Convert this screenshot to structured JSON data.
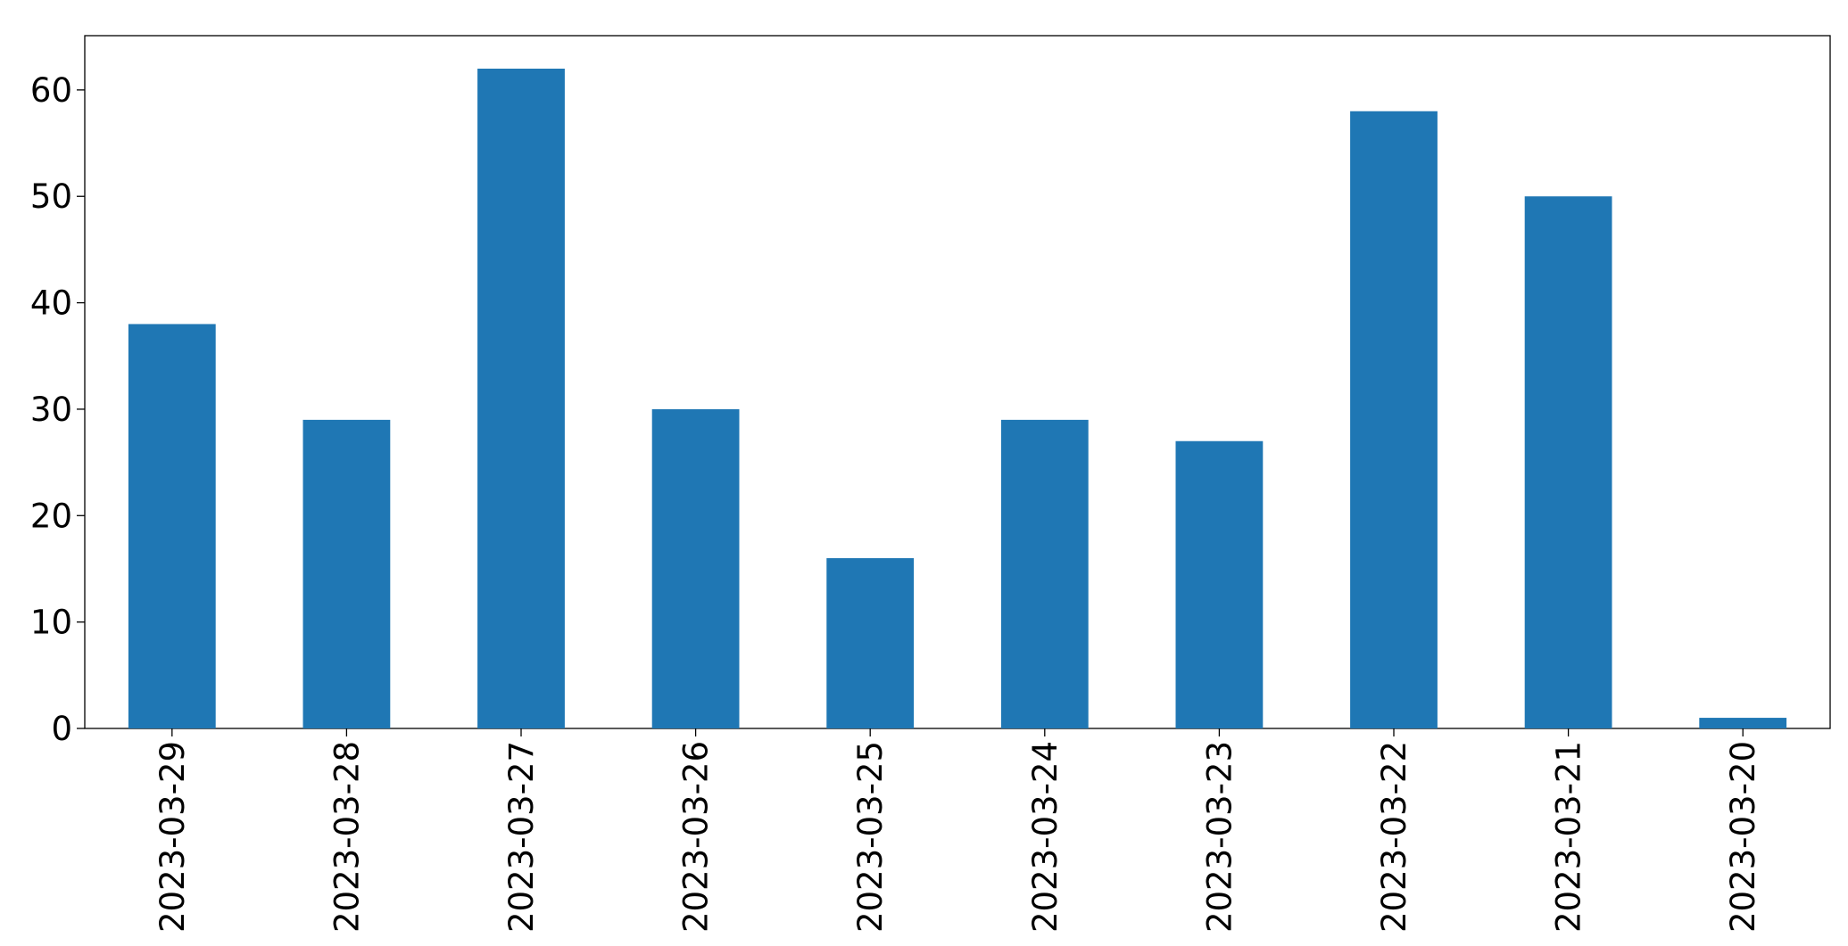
{
  "chart_data": {
    "type": "bar",
    "categories": [
      "2023-03-29",
      "2023-03-28",
      "2023-03-27",
      "2023-03-26",
      "2023-03-25",
      "2023-03-24",
      "2023-03-23",
      "2023-03-22",
      "2023-03-21",
      "2023-03-20"
    ],
    "values": [
      38,
      29,
      62,
      30,
      16,
      29,
      27,
      58,
      50,
      1
    ],
    "color": "#1f77b4",
    "ylim": [
      0,
      65.1
    ],
    "yticks": [
      0,
      10,
      20,
      30,
      40,
      50,
      60
    ],
    "grid": false
  }
}
